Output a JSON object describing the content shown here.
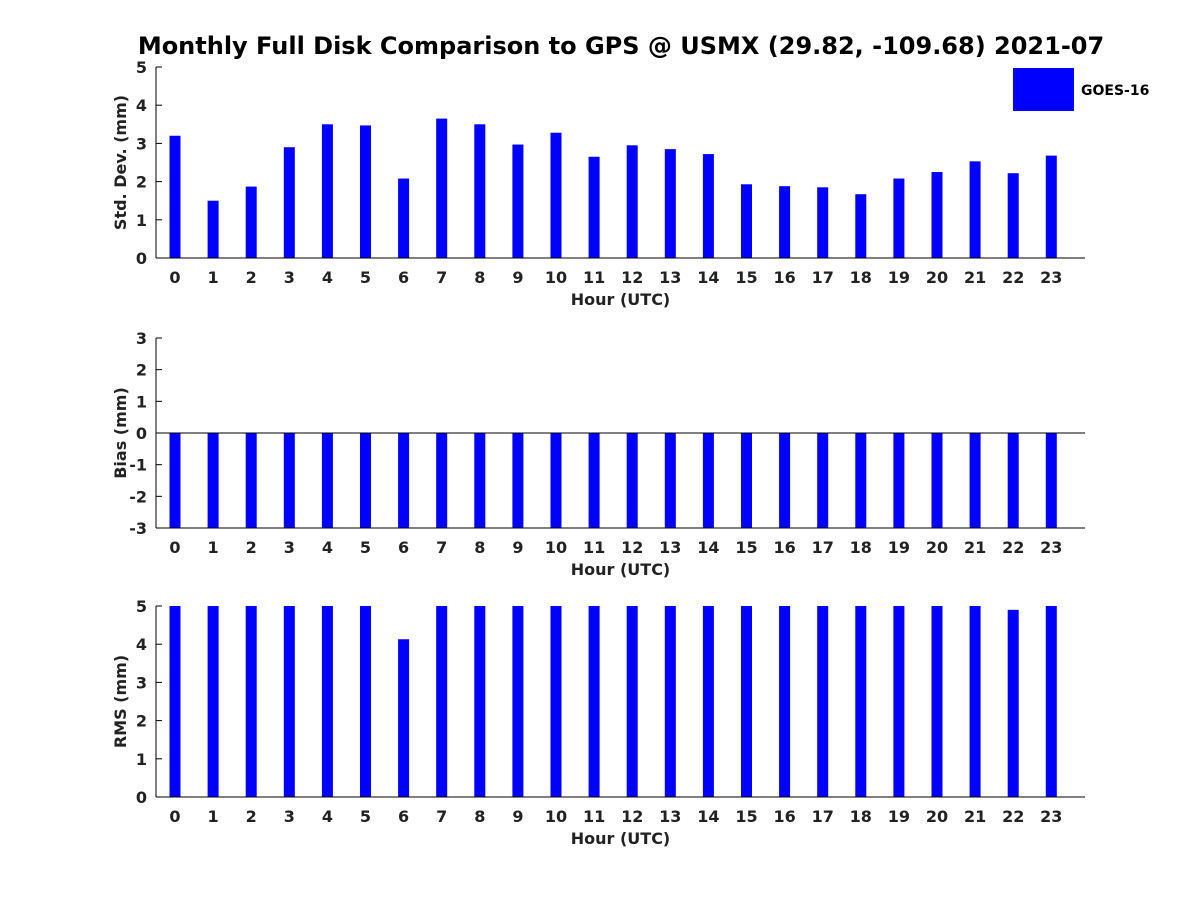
{
  "chart_data": [
    {
      "type": "bar",
      "title": "Monthly Full Disk Comparison to GPS @ USMX (29.82, -109.68) 2021-07",
      "xlabel": "Hour (UTC)",
      "ylabel": "Std. Dev. (mm)",
      "categories": [
        "0",
        "1",
        "2",
        "3",
        "4",
        "5",
        "6",
        "7",
        "8",
        "9",
        "10",
        "11",
        "12",
        "13",
        "14",
        "15",
        "16",
        "17",
        "18",
        "19",
        "20",
        "21",
        "22",
        "23"
      ],
      "yticks": [
        "0",
        "1",
        "2",
        "3",
        "4",
        "5"
      ],
      "ylim": [
        0,
        5
      ],
      "series": [
        {
          "name": "GOES-16",
          "color": "#0000ff",
          "values": [
            3.2,
            1.5,
            1.87,
            2.9,
            3.5,
            3.47,
            2.08,
            3.65,
            3.5,
            2.97,
            3.28,
            2.65,
            2.95,
            2.85,
            2.72,
            1.93,
            1.88,
            1.85,
            1.67,
            2.08,
            2.25,
            2.53,
            2.22,
            2.68
          ]
        }
      ],
      "legend": "top-right",
      "grid": false
    },
    {
      "type": "bar",
      "xlabel": "Hour (UTC)",
      "ylabel": "Bias (mm)",
      "categories": [
        "0",
        "1",
        "2",
        "3",
        "4",
        "5",
        "6",
        "7",
        "8",
        "9",
        "10",
        "11",
        "12",
        "13",
        "14",
        "15",
        "16",
        "17",
        "18",
        "19",
        "20",
        "21",
        "22",
        "23"
      ],
      "yticks": [
        "-3",
        "-2",
        "-1",
        "0",
        "1",
        "2",
        "3"
      ],
      "ylim": [
        -3,
        3
      ],
      "series": [
        {
          "color": "#0000ff",
          "values": [
            -3,
            -3,
            -3,
            -3,
            -3,
            -3,
            -3,
            -3,
            -3,
            -3,
            -3,
            -3,
            -3,
            -3,
            -3,
            -3,
            -3,
            -3,
            -3,
            -3,
            -3,
            -3,
            -3,
            -3
          ]
        }
      ],
      "grid": false
    },
    {
      "type": "bar",
      "xlabel": "Hour (UTC)",
      "ylabel": "RMS (mm)",
      "categories": [
        "0",
        "1",
        "2",
        "3",
        "4",
        "5",
        "6",
        "7",
        "8",
        "9",
        "10",
        "11",
        "12",
        "13",
        "14",
        "15",
        "16",
        "17",
        "18",
        "19",
        "20",
        "21",
        "22",
        "23"
      ],
      "yticks": [
        "0",
        "1",
        "2",
        "3",
        "4",
        "5"
      ],
      "ylim": [
        0,
        5
      ],
      "series": [
        {
          "color": "#0000ff",
          "values": [
            5,
            5,
            5,
            5,
            5,
            5,
            4.13,
            5,
            5,
            5,
            5,
            5,
            5,
            5,
            5,
            5,
            5,
            5,
            5,
            5,
            5,
            5,
            4.9,
            5
          ]
        }
      ],
      "grid": false
    }
  ]
}
